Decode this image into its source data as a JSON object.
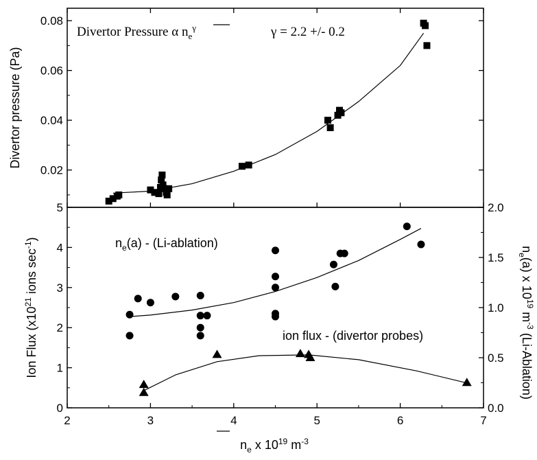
{
  "chart_data": [
    {
      "type": "scatter",
      "panel": "top",
      "annotation": {
        "text_main": "Divertor Pressure  α  ",
        "text_var": "n",
        "text_sub": "e",
        "text_sup": "γ",
        "gamma_text": "γ = 2.2 +/- 0.2"
      },
      "ylabel": "Divertor pressure (Pa)",
      "xlim": [
        2,
        7
      ],
      "ylim": [
        0.005,
        0.085
      ],
      "yticks": [
        0.02,
        0.04,
        0.06,
        0.08
      ],
      "ytick_labels": [
        "0.02",
        "0.04",
        "0.06",
        "0.08"
      ],
      "marker": "square",
      "series": [
        {
          "points": [
            [
              2.5,
              0.0075
            ],
            [
              2.55,
              0.0085
            ],
            [
              2.6,
              0.0095
            ],
            [
              2.62,
              0.01
            ],
            [
              3.0,
              0.012
            ],
            [
              3.05,
              0.011
            ],
            [
              3.1,
              0.0105
            ],
            [
              3.12,
              0.013
            ],
            [
              3.13,
              0.016
            ],
            [
              3.14,
              0.018
            ],
            [
              3.15,
              0.014
            ],
            [
              3.17,
              0.0125
            ],
            [
              3.19,
              0.011
            ],
            [
              3.2,
              0.01
            ],
            [
              3.22,
              0.0125
            ],
            [
              4.1,
              0.0215
            ],
            [
              4.18,
              0.022
            ],
            [
              5.13,
              0.04
            ],
            [
              5.16,
              0.037
            ],
            [
              5.25,
              0.042
            ],
            [
              5.27,
              0.044
            ],
            [
              5.29,
              0.043
            ],
            [
              6.28,
              0.079
            ],
            [
              6.3,
              0.078
            ],
            [
              6.32,
              0.07
            ]
          ],
          "fit": [
            [
              2.55,
              0.0107
            ],
            [
              3.0,
              0.0115
            ],
            [
              3.5,
              0.0145
            ],
            [
              4.0,
              0.0195
            ],
            [
              4.5,
              0.0262
            ],
            [
              5.0,
              0.0355
            ],
            [
              5.5,
              0.0475
            ],
            [
              6.0,
              0.062
            ],
            [
              6.28,
              0.075
            ]
          ]
        }
      ]
    },
    {
      "type": "scatter",
      "panel": "bottom",
      "xlabel_base": "n",
      "xlabel_sub": "e",
      "xlabel_rest": " x 10",
      "xlabel_exp": "19",
      "xlabel_unit": " m",
      "xlabel_unit_exp": "-3",
      "ylabel_left_a": "Ion Flux  (x10",
      "ylabel_left_exp": "21",
      "ylabel_left_b": " ions sec",
      "ylabel_left_exp2": "-1",
      "ylabel_left_c": ")",
      "ylabel_right_a": "n",
      "ylabel_right_sub": "e",
      "ylabel_right_b": "(a) x 10",
      "ylabel_right_exp": "19",
      "ylabel_right_c": " m",
      "ylabel_right_exp2": "-3",
      "ylabel_right_d": " (Li-Ablation)",
      "xlim": [
        2,
        7
      ],
      "xticks": [
        2,
        3,
        4,
        5,
        6,
        7
      ],
      "xtick_labels": [
        "2",
        "3",
        "4",
        "5",
        "6",
        "7"
      ],
      "ylim_left": [
        0,
        5
      ],
      "yticks_left": [
        0,
        1,
        2,
        3,
        4,
        5
      ],
      "ytick_labels_left": [
        "0",
        "1",
        "2",
        "3",
        "4",
        "5"
      ],
      "ylim_right": [
        0.0,
        2.0
      ],
      "yticks_right": [
        0.0,
        0.5,
        1.0,
        1.5,
        2.0
      ],
      "ytick_labels_right": [
        "0.0",
        "0.5",
        "1.0",
        "1.5",
        "2.0"
      ],
      "series": [
        {
          "label_main": "n",
          "label_sub": "e",
          "label_rest": "(a) - (Li-ablation)",
          "marker": "circle",
          "axis": "right",
          "points": [
            [
              2.75,
              0.93
            ],
            [
              2.75,
              0.72
            ],
            [
              2.85,
              1.09
            ],
            [
              3.0,
              1.05
            ],
            [
              3.3,
              1.11
            ],
            [
              3.6,
              1.12
            ],
            [
              3.6,
              0.92
            ],
            [
              3.6,
              0.8
            ],
            [
              3.6,
              0.72
            ],
            [
              3.68,
              0.92
            ],
            [
              4.5,
              1.57
            ],
            [
              4.5,
              1.31
            ],
            [
              4.5,
              1.2
            ],
            [
              4.5,
              0.94
            ],
            [
              4.5,
              0.91
            ],
            [
              5.2,
              1.43
            ],
            [
              5.22,
              1.21
            ],
            [
              5.28,
              1.54
            ],
            [
              5.33,
              1.54
            ],
            [
              6.08,
              1.81
            ],
            [
              6.25,
              1.63
            ]
          ],
          "fit": [
            [
              2.75,
              0.91
            ],
            [
              3.0,
              0.925
            ],
            [
              3.5,
              0.975
            ],
            [
              4.0,
              1.05
            ],
            [
              4.5,
              1.16
            ],
            [
              5.0,
              1.3
            ],
            [
              5.5,
              1.47
            ],
            [
              6.0,
              1.68
            ],
            [
              6.25,
              1.79
            ]
          ]
        },
        {
          "label_main": "ion flux - (divertor probes)",
          "marker": "triangle",
          "axis": "left",
          "points": [
            [
              2.92,
              0.58
            ],
            [
              2.92,
              0.38
            ],
            [
              3.8,
              1.33
            ],
            [
              4.8,
              1.35
            ],
            [
              4.9,
              1.33
            ],
            [
              4.92,
              1.25
            ],
            [
              6.8,
              0.63
            ]
          ],
          "fit": [
            [
              2.92,
              0.43
            ],
            [
              3.3,
              0.82
            ],
            [
              3.8,
              1.15
            ],
            [
              4.3,
              1.3
            ],
            [
              4.9,
              1.32
            ],
            [
              5.5,
              1.2
            ],
            [
              6.2,
              0.92
            ],
            [
              6.8,
              0.62
            ]
          ]
        }
      ]
    }
  ]
}
